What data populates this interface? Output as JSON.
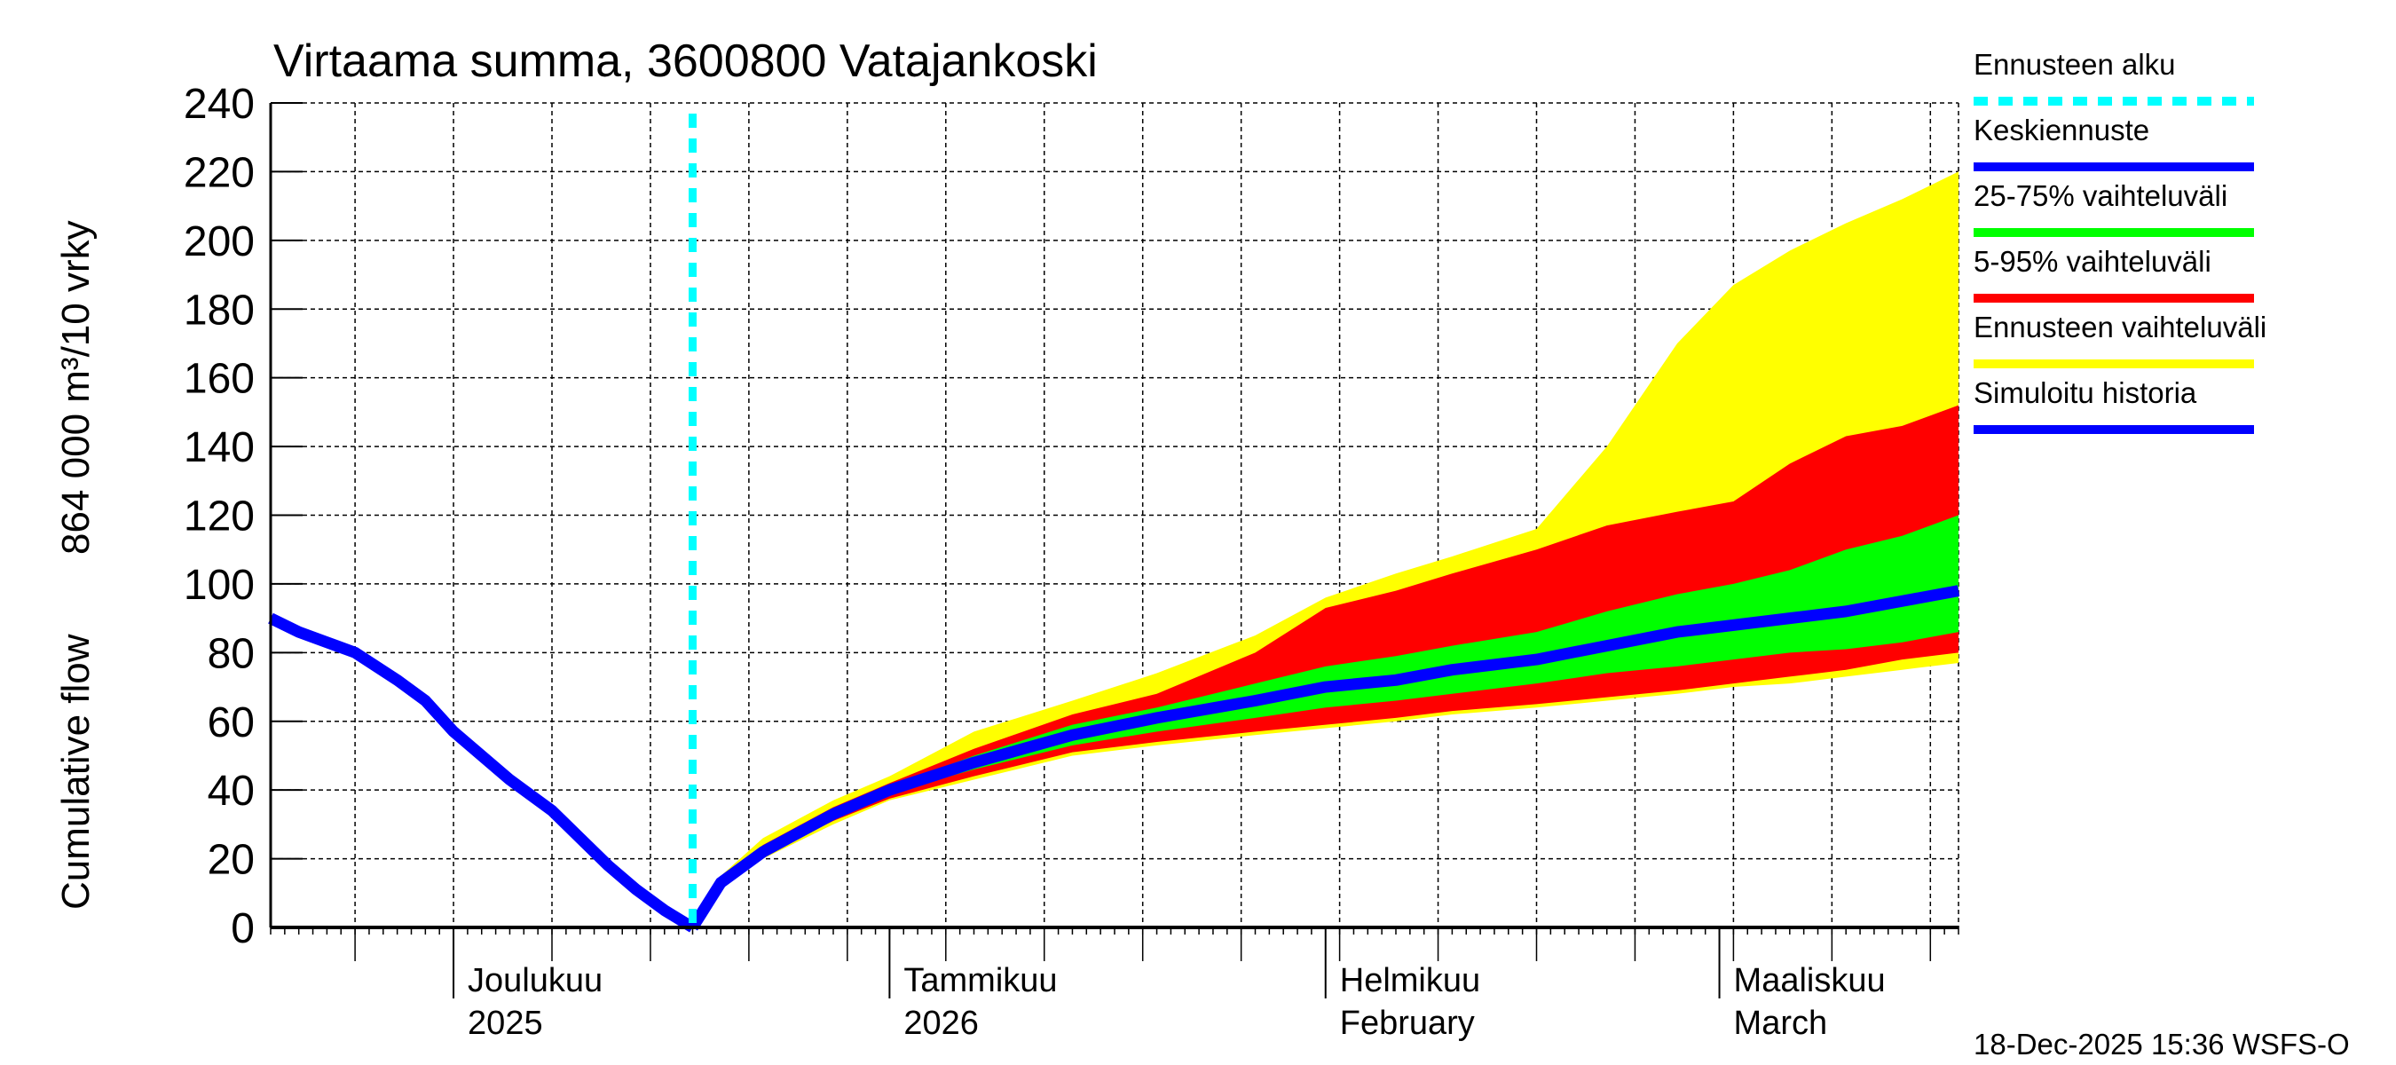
{
  "chart_data": {
    "type": "area",
    "title": "Virtaama summa, 3600800 Vatajankoski",
    "ylabel_top": "864 000 m³/10 vrky",
    "ylabel_bottom": "Cumulative flow",
    "ylim": [
      0,
      240
    ],
    "yticks": [
      0,
      20,
      40,
      60,
      80,
      100,
      120,
      140,
      160,
      180,
      200,
      220,
      240
    ],
    "x_unit": "days since 18-Nov-2025",
    "xlim": [
      0,
      120
    ],
    "forecast_start_day": 30,
    "month_ticks": [
      {
        "day": 13,
        "line1": "Joulukuu",
        "line2": "2025"
      },
      {
        "day": 44,
        "line1": "Tammikuu",
        "line2": "2026"
      },
      {
        "day": 75,
        "line1": "Helmikuu",
        "line2": "February"
      },
      {
        "day": 103,
        "line1": "Maaliskuu",
        "line2": "March"
      }
    ],
    "history": {
      "days": [
        0,
        2,
        4,
        6,
        9,
        11,
        13,
        15,
        17,
        20,
        22,
        24,
        26,
        28,
        30
      ],
      "values": [
        90,
        86,
        83,
        80,
        72,
        66,
        57,
        50,
        43,
        34,
        26,
        18,
        11,
        5,
        0
      ]
    },
    "forecast": {
      "days": [
        30,
        32,
        35,
        40,
        44,
        50,
        57,
        63,
        70,
        75,
        80,
        84,
        90,
        95,
        100,
        104,
        108,
        112,
        116,
        120
      ],
      "min": [
        0,
        12,
        20,
        30,
        37,
        43,
        50,
        53,
        56,
        58,
        60,
        62,
        64,
        66,
        68,
        70,
        71,
        73,
        75,
        77
      ],
      "p5": [
        0,
        12,
        21,
        31,
        37.5,
        44,
        51,
        54,
        57,
        59,
        61,
        63,
        65,
        67,
        69,
        71,
        73,
        75,
        78,
        80
      ],
      "p25": [
        0,
        12.5,
        22,
        32,
        39,
        46,
        53,
        57,
        61,
        64,
        66,
        68,
        71,
        74,
        76,
        78,
        80,
        81,
        83,
        86
      ],
      "median": [
        0,
        13,
        22,
        33,
        40,
        48,
        56,
        61,
        66,
        70,
        72,
        75,
        78,
        82,
        86,
        88,
        90,
        92,
        95,
        98
      ],
      "p75": [
        0,
        13.5,
        23,
        34,
        41,
        50,
        59,
        64,
        71,
        76,
        79,
        82,
        86,
        92,
        97,
        100,
        104,
        110,
        114,
        120
      ],
      "p95": [
        0,
        14,
        24,
        35,
        42,
        52,
        62,
        68,
        80,
        93,
        98,
        103,
        110,
        117,
        121,
        124,
        135,
        143,
        146,
        152
      ],
      "max": [
        0,
        15,
        26,
        37,
        44,
        57,
        66,
        74,
        85,
        96,
        103,
        108,
        116,
        140,
        170,
        187,
        197,
        205,
        212,
        220
      ]
    },
    "legend": [
      {
        "label": "Ennusteen alku",
        "color": "#00ffff",
        "style": "dashed"
      },
      {
        "label": "Keskiennuste",
        "color": "#0000ff",
        "style": "line"
      },
      {
        "label": "25-75% vaihteluväli",
        "color": "#00ff00",
        "style": "line"
      },
      {
        "label": "5-95% vaihteluväli",
        "color": "#ff0000",
        "style": "line"
      },
      {
        "label": "Ennusteen vaihteluväli",
        "color": "#ffff00",
        "style": "line"
      },
      {
        "label": "Simuloitu historia",
        "color": "#0000ff",
        "style": "line"
      }
    ],
    "legend_position": "right",
    "grid": true,
    "timestamp": "18-Dec-2025 15:36 WSFS-O"
  }
}
